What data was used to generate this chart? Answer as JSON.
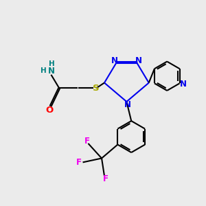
{
  "background_color": "#ebebeb",
  "bond_color": "#000000",
  "nitrogen_color": "#0000ee",
  "oxygen_color": "#ff0000",
  "sulfur_color": "#aaaa00",
  "fluorine_color": "#ee00ee",
  "nh_color": "#008080",
  "line_width": 1.5,
  "font_size": 8.5,
  "xlim": [
    0,
    10
  ],
  "ylim": [
    0,
    10
  ]
}
